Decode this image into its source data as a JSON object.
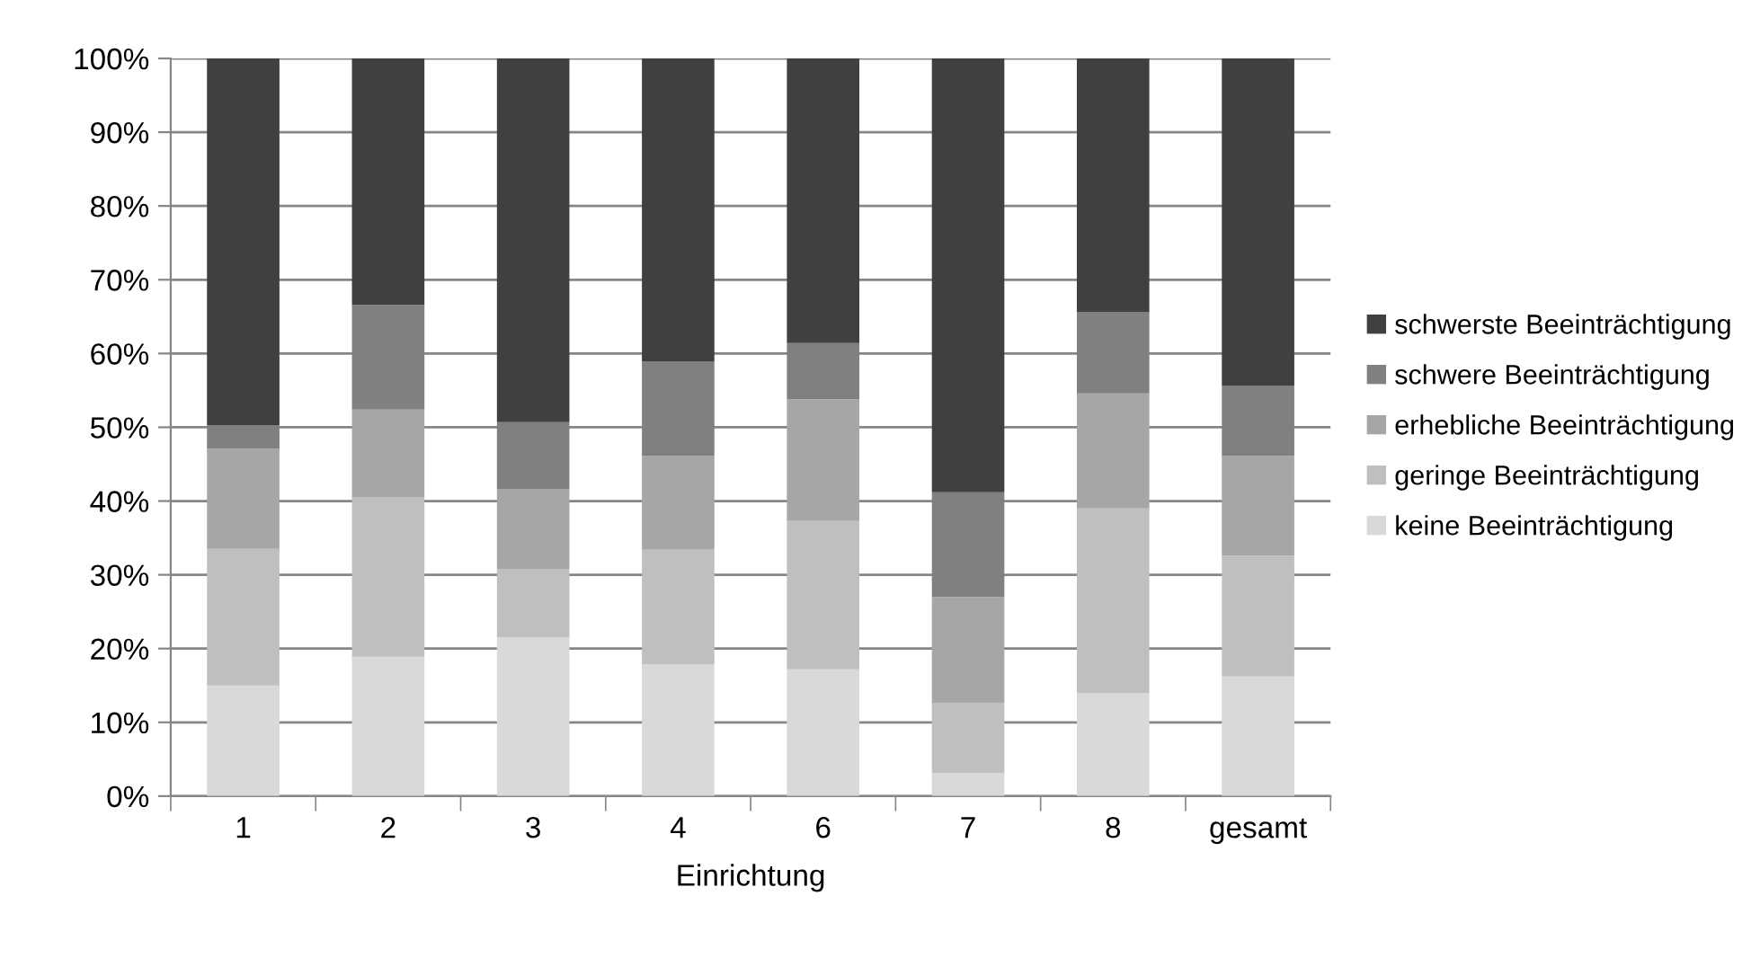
{
  "chart_data": {
    "type": "bar",
    "stacked": true,
    "xlabel": "Einrichtung",
    "categories": [
      "1",
      "2",
      "3",
      "4",
      "6",
      "7",
      "8",
      "gesamt"
    ],
    "series": [
      {
        "name": "keine Beeinträchtigung",
        "color": "#d9d9d9",
        "values": [
          15.0,
          18.9,
          21.5,
          17.9,
          17.2,
          3.1,
          14.0,
          16.2
        ]
      },
      {
        "name": "geringe Beeinträchtigung",
        "color": "#bfbfbf",
        "values": [
          18.5,
          21.6,
          9.3,
          15.5,
          20.1,
          9.5,
          25.0,
          16.4
        ]
      },
      {
        "name": "erhebliche Beeinträchtigung",
        "color": "#a6a6a6",
        "values": [
          13.6,
          11.9,
          10.8,
          12.7,
          16.5,
          14.4,
          15.6,
          13.5
        ]
      },
      {
        "name": "schwere Beeinträchtigung",
        "color": "#808080",
        "values": [
          3.2,
          14.2,
          9.1,
          12.8,
          7.6,
          14.2,
          11.0,
          9.5
        ]
      },
      {
        "name": "schwerste Beeinträchtigung",
        "color": "#404040",
        "values": [
          49.7,
          33.4,
          49.3,
          41.1,
          38.6,
          58.8,
          34.4,
          44.4
        ]
      }
    ],
    "ylim": [
      0,
      100
    ],
    "yticks": [
      {
        "value": 0,
        "label": "0%"
      },
      {
        "value": 10,
        "label": "10%"
      },
      {
        "value": 20,
        "label": "20%"
      },
      {
        "value": 30,
        "label": "30%"
      },
      {
        "value": 40,
        "label": "40%"
      },
      {
        "value": 50,
        "label": "50%"
      },
      {
        "value": 60,
        "label": "60%"
      },
      {
        "value": 70,
        "label": "70%"
      },
      {
        "value": 80,
        "label": "80%"
      },
      {
        "value": 90,
        "label": "90%"
      },
      {
        "value": 100,
        "label": "100%"
      }
    ],
    "grid": "y",
    "legend": "right"
  }
}
